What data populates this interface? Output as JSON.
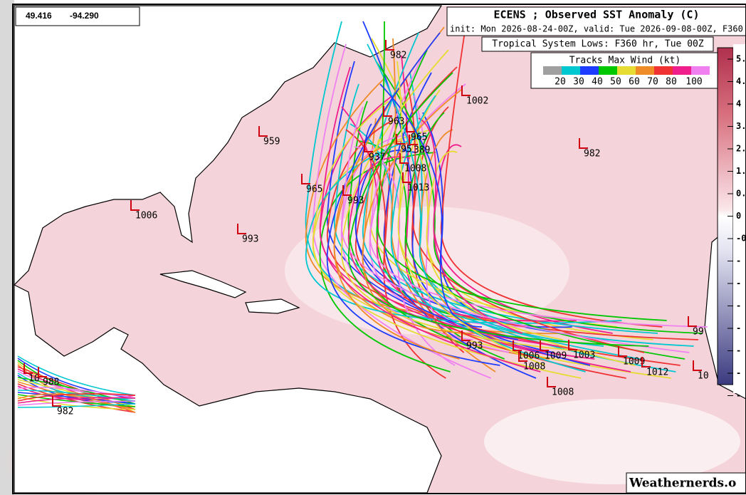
{
  "coords": {
    "lat": "49.416",
    "lon": "-94.290"
  },
  "header": {
    "title": "ECENS ; Observed SST Anomaly (C)",
    "subtitle": "init: Mon 2026-08-24-00Z, valid: Tue 2026-09-08-00Z, F360",
    "lows_caption": "Tropical System Lows: F360 hr, Tue 00Z"
  },
  "legend": {
    "title": "Tracks Max Wind (kt)",
    "labels": [
      "20",
      "30",
      "40",
      "50",
      "60",
      "70",
      "80",
      "100"
    ]
  },
  "colorbar": {
    "labels": [
      "5.",
      "4.",
      "4",
      "3.",
      "2.",
      "1.",
      "0.",
      "0",
      "-0",
      "-",
      "-",
      "-",
      "-",
      "-",
      "-",
      "-"
    ]
  },
  "lows": [
    "982",
    "1002",
    "963",
    "965",
    "959",
    "982",
    "937",
    "95",
    "389",
    "1008",
    "965",
    "1013",
    "993",
    "1006",
    "993",
    "993",
    "1006",
    "1009",
    "1003",
    "1008",
    "1009",
    "1012",
    "99",
    "1008",
    "10",
    "988",
    "982",
    "10"
  ],
  "footer": {
    "credit": "Weathernerds.o"
  }
}
